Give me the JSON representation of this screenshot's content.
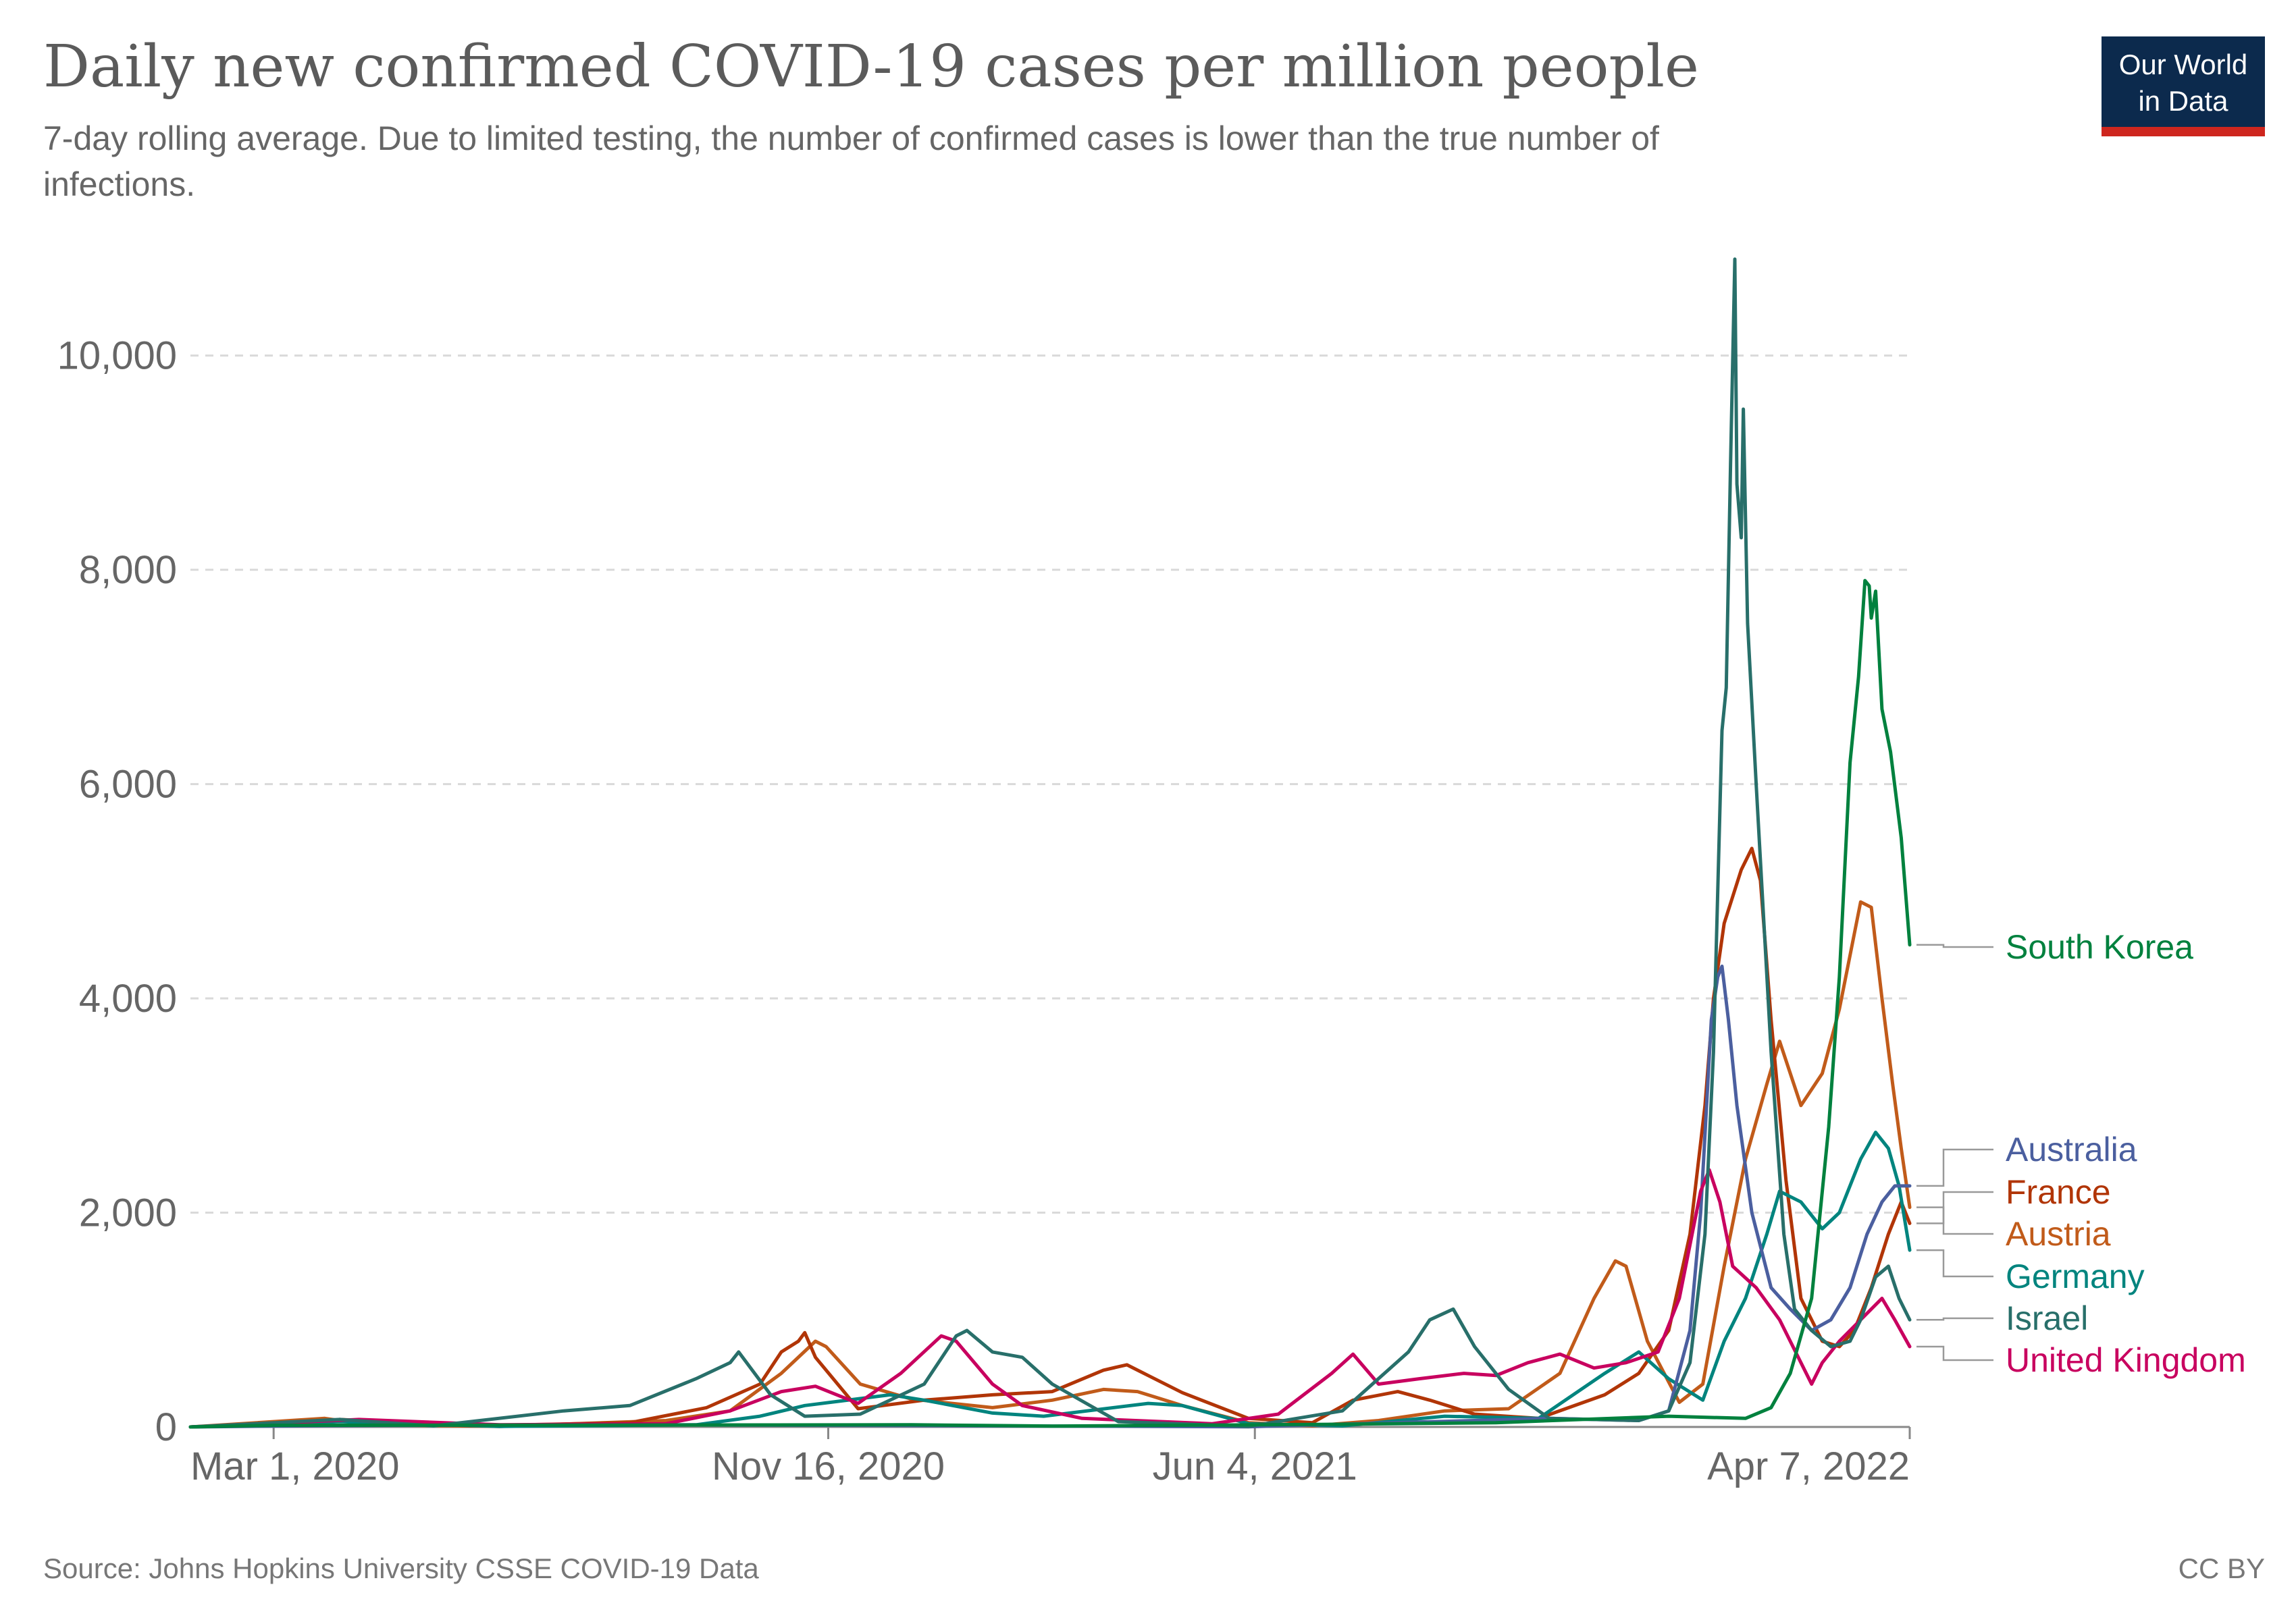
{
  "title": "Daily new confirmed COVID-19 cases per million people",
  "subtitle_line1": "7-day rolling average. Due to limited testing, the number of confirmed cases is lower than the true number of",
  "subtitle_line2": "infections.",
  "logo": {
    "line1": "Our World",
    "line2": "in Data",
    "bg": "#0c2a4d",
    "accent": "#ce261e"
  },
  "source": "Source: Johns Hopkins University CSSE COVID-19 Data",
  "license": "CC BY",
  "chart_data": {
    "type": "line",
    "x_axis": {
      "min": "2020-01-22",
      "max": "2022-04-07",
      "ticks": [
        "Mar 1, 2020",
        "Nov 16, 2020",
        "Jun 4, 2021",
        "Apr 7, 2022"
      ],
      "tick_dates": [
        "2020-03-01",
        "2020-11-16",
        "2021-06-04",
        "2022-04-07"
      ]
    },
    "y_axis": {
      "min": 0,
      "max": 11000,
      "ticks": [
        0,
        2000,
        4000,
        6000,
        8000,
        10000
      ],
      "tick_labels": [
        "0",
        "2,000",
        "4,000",
        "6,000",
        "8,000",
        "10,000"
      ]
    },
    "grid": true,
    "legend": "right, labels at line ends",
    "series": [
      {
        "name": "South Korea",
        "color": "#00813e",
        "points": [
          [
            "2020-01-22",
            0
          ],
          [
            "2020-03-01",
            15
          ],
          [
            "2020-12-25",
            20
          ],
          [
            "2021-03-01",
            8
          ],
          [
            "2021-07-15",
            25
          ],
          [
            "2021-09-25",
            40
          ],
          [
            "2021-12-15",
            100
          ],
          [
            "2022-01-20",
            80
          ],
          [
            "2022-02-01",
            180
          ],
          [
            "2022-02-10",
            500
          ],
          [
            "2022-02-20",
            1200
          ],
          [
            "2022-02-28",
            2800
          ],
          [
            "2022-03-05",
            4200
          ],
          [
            "2022-03-10",
            6200
          ],
          [
            "2022-03-14",
            7000
          ],
          [
            "2022-03-17",
            7900
          ],
          [
            "2022-03-19",
            7850
          ],
          [
            "2022-03-20",
            7550
          ],
          [
            "2022-03-22",
            7800
          ],
          [
            "2022-03-25",
            6700
          ],
          [
            "2022-03-29",
            6300
          ],
          [
            "2022-04-03",
            5500
          ],
          [
            "2022-04-07",
            4500
          ]
        ]
      },
      {
        "name": "Australia",
        "color": "#4b5f9f",
        "points": [
          [
            "2020-01-22",
            0
          ],
          [
            "2020-03-25",
            12
          ],
          [
            "2020-08-05",
            22
          ],
          [
            "2021-06-01",
            2
          ],
          [
            "2021-09-15",
            60
          ],
          [
            "2021-10-20",
            80
          ],
          [
            "2021-12-01",
            60
          ],
          [
            "2021-12-15",
            150
          ],
          [
            "2021-12-25",
            900
          ],
          [
            "2021-12-30",
            2000
          ],
          [
            "2022-01-04",
            3800
          ],
          [
            "2022-01-07",
            4200
          ],
          [
            "2022-01-09",
            4300
          ],
          [
            "2022-01-12",
            3800
          ],
          [
            "2022-01-16",
            3000
          ],
          [
            "2022-01-23",
            2000
          ],
          [
            "2022-02-01",
            1300
          ],
          [
            "2022-02-10",
            1100
          ],
          [
            "2022-02-20",
            900
          ],
          [
            "2022-03-01",
            1000
          ],
          [
            "2022-03-10",
            1300
          ],
          [
            "2022-03-18",
            1800
          ],
          [
            "2022-03-25",
            2100
          ],
          [
            "2022-03-31",
            2250
          ],
          [
            "2022-04-07",
            2250
          ]
        ]
      },
      {
        "name": "France",
        "color": "#b13507",
        "points": [
          [
            "2020-01-22",
            0
          ],
          [
            "2020-03-20",
            40
          ],
          [
            "2020-04-01",
            70
          ],
          [
            "2020-06-01",
            10
          ],
          [
            "2020-08-15",
            40
          ],
          [
            "2020-09-20",
            180
          ],
          [
            "2020-10-15",
            400
          ],
          [
            "2020-10-25",
            700
          ],
          [
            "2020-11-02",
            800
          ],
          [
            "2020-11-05",
            880
          ],
          [
            "2020-11-10",
            650
          ],
          [
            "2020-11-30",
            170
          ],
          [
            "2020-12-31",
            250
          ],
          [
            "2021-02-01",
            300
          ],
          [
            "2021-03-01",
            330
          ],
          [
            "2021-03-25",
            530
          ],
          [
            "2021-04-05",
            580
          ],
          [
            "2021-04-15",
            480
          ],
          [
            "2021-05-01",
            320
          ],
          [
            "2021-06-01",
            80
          ],
          [
            "2021-07-01",
            40
          ],
          [
            "2021-07-20",
            250
          ],
          [
            "2021-08-10",
            330
          ],
          [
            "2021-08-25",
            250
          ],
          [
            "2021-09-15",
            120
          ],
          [
            "2021-10-15",
            80
          ],
          [
            "2021-11-15",
            300
          ],
          [
            "2021-12-01",
            500
          ],
          [
            "2021-12-15",
            900
          ],
          [
            "2021-12-25",
            1800
          ],
          [
            "2022-01-01",
            3000
          ],
          [
            "2022-01-05",
            4000
          ],
          [
            "2022-01-10",
            4700
          ],
          [
            "2022-01-18",
            5200
          ],
          [
            "2022-01-23",
            5400
          ],
          [
            "2022-01-27",
            5100
          ],
          [
            "2022-02-01",
            3800
          ],
          [
            "2022-02-08",
            2300
          ],
          [
            "2022-02-15",
            1200
          ],
          [
            "2022-02-25",
            800
          ],
          [
            "2022-03-05",
            750
          ],
          [
            "2022-03-12",
            900
          ],
          [
            "2022-03-20",
            1300
          ],
          [
            "2022-03-28",
            1800
          ],
          [
            "2022-04-03",
            2100
          ],
          [
            "2022-04-07",
            1900
          ]
        ]
      },
      {
        "name": "Austria",
        "color": "#c15b1a",
        "points": [
          [
            "2020-01-22",
            0
          ],
          [
            "2020-03-25",
            80
          ],
          [
            "2020-04-15",
            20
          ],
          [
            "2020-06-15",
            5
          ],
          [
            "2020-09-01",
            60
          ],
          [
            "2020-10-01",
            150
          ],
          [
            "2020-10-25",
            500
          ],
          [
            "2020-11-10",
            800
          ],
          [
            "2020-11-15",
            750
          ],
          [
            "2020-12-01",
            400
          ],
          [
            "2020-12-25",
            260
          ],
          [
            "2021-02-01",
            180
          ],
          [
            "2021-03-01",
            250
          ],
          [
            "2021-03-25",
            350
          ],
          [
            "2021-04-10",
            330
          ],
          [
            "2021-05-01",
            200
          ],
          [
            "2021-06-01",
            40
          ],
          [
            "2021-07-01",
            10
          ],
          [
            "2021-08-01",
            60
          ],
          [
            "2021-09-01",
            150
          ],
          [
            "2021-10-01",
            170
          ],
          [
            "2021-10-25",
            500
          ],
          [
            "2021-11-10",
            1200
          ],
          [
            "2021-11-20",
            1550
          ],
          [
            "2021-11-25",
            1500
          ],
          [
            "2021-12-05",
            800
          ],
          [
            "2021-12-20",
            230
          ],
          [
            "2021-12-31",
            400
          ],
          [
            "2022-01-10",
            1500
          ],
          [
            "2022-01-20",
            2500
          ],
          [
            "2022-01-30",
            3200
          ],
          [
            "2022-02-05",
            3600
          ],
          [
            "2022-02-15",
            3000
          ],
          [
            "2022-02-25",
            3300
          ],
          [
            "2022-03-05",
            3900
          ],
          [
            "2022-03-15",
            4900
          ],
          [
            "2022-03-20",
            4850
          ],
          [
            "2022-03-25",
            4000
          ],
          [
            "2022-03-30",
            3200
          ],
          [
            "2022-04-03",
            2600
          ],
          [
            "2022-04-07",
            2050
          ]
        ]
      },
      {
        "name": "Germany",
        "color": "#00847e",
        "points": [
          [
            "2020-01-22",
            0
          ],
          [
            "2020-04-01",
            50
          ],
          [
            "2020-06-15",
            5
          ],
          [
            "2020-09-15",
            20
          ],
          [
            "2020-10-15",
            100
          ],
          [
            "2020-11-05",
            200
          ],
          [
            "2020-12-15",
            300
          ],
          [
            "2020-12-31",
            250
          ],
          [
            "2021-02-01",
            130
          ],
          [
            "2021-02-25",
            100
          ],
          [
            "2021-04-15",
            220
          ],
          [
            "2021-05-01",
            200
          ],
          [
            "2021-06-01",
            30
          ],
          [
            "2021-07-15",
            10
          ],
          [
            "2021-09-01",
            100
          ],
          [
            "2021-10-15",
            80
          ],
          [
            "2021-11-15",
            500
          ],
          [
            "2021-12-01",
            700
          ],
          [
            "2021-12-15",
            450
          ],
          [
            "2021-12-31",
            250
          ],
          [
            "2022-01-10",
            800
          ],
          [
            "2022-01-20",
            1200
          ],
          [
            "2022-01-30",
            1800
          ],
          [
            "2022-02-05",
            2200
          ],
          [
            "2022-02-15",
            2100
          ],
          [
            "2022-02-25",
            1850
          ],
          [
            "2022-03-05",
            2000
          ],
          [
            "2022-03-15",
            2500
          ],
          [
            "2022-03-22",
            2750
          ],
          [
            "2022-03-28",
            2600
          ],
          [
            "2022-04-02",
            2250
          ],
          [
            "2022-04-07",
            1650
          ]
        ]
      },
      {
        "name": "Israel",
        "color": "#286f6a",
        "points": [
          [
            "2020-01-22",
            0
          ],
          [
            "2020-04-01",
            70
          ],
          [
            "2020-05-15",
            10
          ],
          [
            "2020-07-15",
            150
          ],
          [
            "2020-08-15",
            200
          ],
          [
            "2020-09-15",
            450
          ],
          [
            "2020-10-01",
            600
          ],
          [
            "2020-10-05",
            700
          ],
          [
            "2020-10-20",
            300
          ],
          [
            "2020-11-05",
            100
          ],
          [
            "2020-12-01",
            120
          ],
          [
            "2020-12-31",
            400
          ],
          [
            "2021-01-15",
            850
          ],
          [
            "2021-01-20",
            900
          ],
          [
            "2021-02-01",
            700
          ],
          [
            "2021-02-15",
            650
          ],
          [
            "2021-03-01",
            400
          ],
          [
            "2021-04-01",
            50
          ],
          [
            "2021-06-01",
            5
          ],
          [
            "2021-07-15",
            150
          ],
          [
            "2021-08-15",
            700
          ],
          [
            "2021-08-25",
            1000
          ],
          [
            "2021-09-05",
            1100
          ],
          [
            "2021-09-15",
            750
          ],
          [
            "2021-10-01",
            350
          ],
          [
            "2021-10-20",
            80
          ],
          [
            "2021-12-01",
            60
          ],
          [
            "2021-12-15",
            150
          ],
          [
            "2021-12-25",
            600
          ],
          [
            "2022-01-01",
            1800
          ],
          [
            "2022-01-05",
            3500
          ],
          [
            "2022-01-09",
            6500
          ],
          [
            "2022-01-11",
            6900
          ],
          [
            "2022-01-13",
            9000
          ],
          [
            "2022-01-15",
            10900
          ],
          [
            "2022-01-16",
            8800
          ],
          [
            "2022-01-18",
            8300
          ],
          [
            "2022-01-19",
            9500
          ],
          [
            "2022-01-21",
            7500
          ],
          [
            "2022-01-25",
            6000
          ],
          [
            "2022-02-01",
            3500
          ],
          [
            "2022-02-07",
            1800
          ],
          [
            "2022-02-12",
            1100
          ],
          [
            "2022-02-20",
            900
          ],
          [
            "2022-03-01",
            750
          ],
          [
            "2022-03-10",
            800
          ],
          [
            "2022-03-15",
            1000
          ],
          [
            "2022-03-22",
            1400
          ],
          [
            "2022-03-28",
            1500
          ],
          [
            "2022-04-02",
            1200
          ],
          [
            "2022-04-07",
            1000
          ]
        ]
      },
      {
        "name": "United Kingdom",
        "color": "#c8005f",
        "points": [
          [
            "2020-01-22",
            0
          ],
          [
            "2020-04-10",
            70
          ],
          [
            "2020-06-15",
            20
          ],
          [
            "2020-09-01",
            30
          ],
          [
            "2020-10-01",
            150
          ],
          [
            "2020-10-25",
            330
          ],
          [
            "2020-11-10",
            380
          ],
          [
            "2020-11-30",
            220
          ],
          [
            "2020-12-20",
            500
          ],
          [
            "2021-01-08",
            850
          ],
          [
            "2021-01-15",
            800
          ],
          [
            "2021-02-01",
            400
          ],
          [
            "2021-02-15",
            200
          ],
          [
            "2021-03-15",
            80
          ],
          [
            "2021-05-15",
            30
          ],
          [
            "2021-06-15",
            120
          ],
          [
            "2021-07-10",
            500
          ],
          [
            "2021-07-20",
            680
          ],
          [
            "2021-08-01",
            400
          ],
          [
            "2021-08-20",
            450
          ],
          [
            "2021-09-10",
            500
          ],
          [
            "2021-09-25",
            480
          ],
          [
            "2021-10-10",
            600
          ],
          [
            "2021-10-25",
            680
          ],
          [
            "2021-11-10",
            550
          ],
          [
            "2021-11-25",
            600
          ],
          [
            "2021-12-10",
            700
          ],
          [
            "2021-12-20",
            1200
          ],
          [
            "2021-12-30",
            2200
          ],
          [
            "2022-01-03",
            2400
          ],
          [
            "2022-01-08",
            2100
          ],
          [
            "2022-01-14",
            1500
          ],
          [
            "2022-01-25",
            1300
          ],
          [
            "2022-02-05",
            1000
          ],
          [
            "2022-02-15",
            600
          ],
          [
            "2022-02-20",
            400
          ],
          [
            "2022-02-25",
            600
          ],
          [
            "2022-03-05",
            800
          ],
          [
            "2022-03-15",
            1000
          ],
          [
            "2022-03-25",
            1200
          ],
          [
            "2022-03-31",
            1000
          ],
          [
            "2022-04-07",
            750
          ]
        ]
      }
    ]
  }
}
